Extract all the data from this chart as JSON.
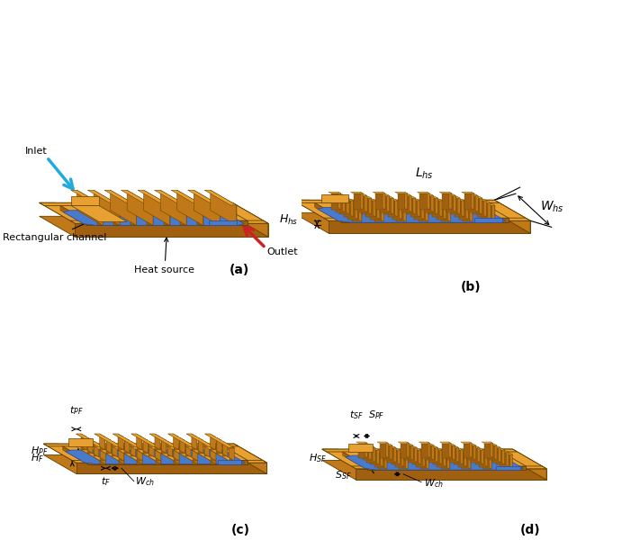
{
  "orange_top": "#E8A030",
  "orange_right": "#C07818",
  "orange_front": "#A06010",
  "blue_top": "#4A7ACC",
  "blue_side": "#2A4A9A",
  "cyan": "#22AADD",
  "red": "#CC2222",
  "black": "#000000",
  "white": "#FFFFFF",
  "lbl_a": "(a)",
  "lbl_b": "(b)",
  "lbl_c": "(c)",
  "lbl_d": "(d)",
  "inlet": "Inlet",
  "outlet": "Outlet",
  "rect_ch": "Rectangular channel",
  "heat_src": "Heat source",
  "H_hs": "$H_{hs}$",
  "L_hs": "$L_{hs}$",
  "W_hs": "$W_{hs}$",
  "H_PF": "$H_{PF}$",
  "t_PF": "$t_{PF}$",
  "H_F": "$H_{F}$",
  "t_F": "$t_{F}$",
  "W_ch": "$W_{ch}$",
  "H_SF": "$H_{SF}$",
  "t_SF": "$t_{SF}$",
  "S_PF": "$S_{PF}$",
  "S_SF": "$S_{SF}$"
}
